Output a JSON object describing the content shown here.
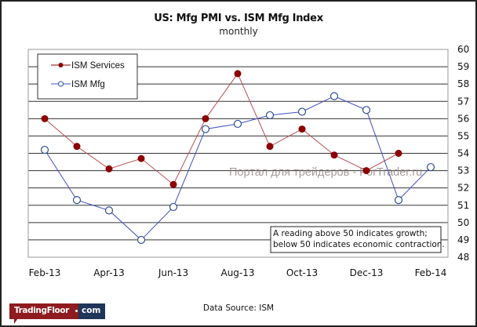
{
  "chart_data": {
    "type": "line",
    "title": "US: Mfg PMI vs. ISM Mfg Index",
    "subtitle": "monthly",
    "x": [
      "Feb-13",
      "Mar-13",
      "Apr-13",
      "May-13",
      "Jun-13",
      "Jul-13",
      "Aug-13",
      "Sep-13",
      "Oct-13",
      "Nov-13",
      "Dec-13",
      "Jan-14",
      "Feb-14"
    ],
    "x_tick_labels": [
      "Feb-13",
      "Apr-13",
      "Jun-13",
      "Aug-13",
      "Oct-13",
      "Dec-13",
      "Feb-14"
    ],
    "y_ticks": [
      60,
      59,
      58,
      57,
      56,
      55,
      54,
      53,
      52,
      51,
      50,
      49,
      48
    ],
    "ylim": [
      48,
      60
    ],
    "y_axis_side": "right",
    "grid": true,
    "legend_position": "top-left",
    "series": [
      {
        "name": "ISM Services",
        "color": "#8b0000",
        "line_color": "#b5504f",
        "marker": "filled-circle",
        "values": [
          56.0,
          54.4,
          53.1,
          53.7,
          52.2,
          56.0,
          58.6,
          54.4,
          55.4,
          53.9,
          53.0,
          54.0,
          null
        ]
      },
      {
        "name": "ISM Mfg",
        "color": "#2f4f8f",
        "line_color": "#3f4fc0",
        "marker": "open-circle",
        "values": [
          54.2,
          51.3,
          50.7,
          49.0,
          50.9,
          55.4,
          55.7,
          56.2,
          56.4,
          57.3,
          56.5,
          51.3,
          53.2
        ]
      }
    ],
    "annotation": [
      "A reading above 50 indicates growth;",
      "below 50 indicates economic contraction."
    ],
    "watermark": "Портал для трейдеров - ForTrader.ru",
    "data_source": "Data Source:  ISM"
  },
  "branding": {
    "logo_left": "TradingFloor",
    "logo_right": "com"
  }
}
